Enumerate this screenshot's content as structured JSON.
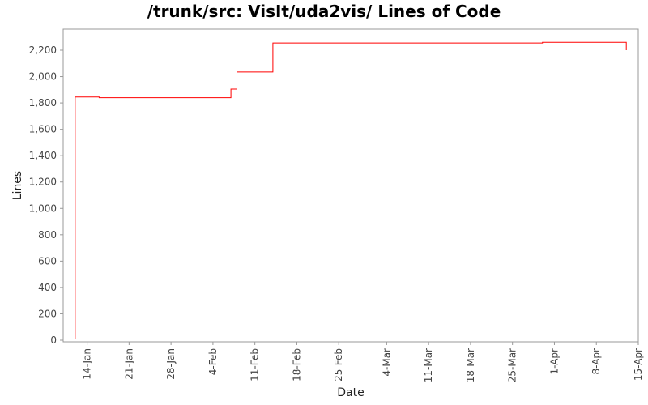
{
  "chart_data": {
    "type": "line",
    "title": "/trunk/src: VisIt/uda2vis/ Lines of Code",
    "xlabel": "Date",
    "ylabel": "Lines",
    "x_type": "date",
    "xlim": [
      "2008-01-10",
      "2008-04-15"
    ],
    "ylim": [
      0,
      2350
    ],
    "grid": false,
    "legend": "none",
    "colors": {
      "line": "#ff0000",
      "plot_border": "#999999",
      "background": "#ffffff"
    },
    "x_ticks": [
      {
        "date": "2008-01-14",
        "label": "14-Jan"
      },
      {
        "date": "2008-01-21",
        "label": "21-Jan"
      },
      {
        "date": "2008-01-28",
        "label": "28-Jan"
      },
      {
        "date": "2008-02-04",
        "label": "4-Feb"
      },
      {
        "date": "2008-02-11",
        "label": "11-Feb"
      },
      {
        "date": "2008-02-18",
        "label": "18-Feb"
      },
      {
        "date": "2008-02-25",
        "label": "25-Feb"
      },
      {
        "date": "2008-03-04",
        "label": "4-Mar"
      },
      {
        "date": "2008-03-11",
        "label": "11-Mar"
      },
      {
        "date": "2008-03-18",
        "label": "18-Mar"
      },
      {
        "date": "2008-03-25",
        "label": "25-Mar"
      },
      {
        "date": "2008-04-01",
        "label": "1-Apr"
      },
      {
        "date": "2008-04-08",
        "label": "8-Apr"
      },
      {
        "date": "2008-04-15",
        "label": "15-Apr"
      }
    ],
    "y_ticks": [
      {
        "value": 0,
        "label": "0"
      },
      {
        "value": 200,
        "label": "200"
      },
      {
        "value": 400,
        "label": "400"
      },
      {
        "value": 600,
        "label": "600"
      },
      {
        "value": 800,
        "label": "800"
      },
      {
        "value": 1000,
        "label": "1,000"
      },
      {
        "value": 1200,
        "label": "1,200"
      },
      {
        "value": 1400,
        "label": "1,400"
      },
      {
        "value": 1600,
        "label": "1,600"
      },
      {
        "value": 1800,
        "label": "1,800"
      },
      {
        "value": 2000,
        "label": "2,000"
      },
      {
        "value": 2200,
        "label": "2,200"
      }
    ],
    "series": [
      {
        "points": [
          {
            "x": "2008-01-12",
            "y": 10
          },
          {
            "x": "2008-01-12",
            "y": 1845
          },
          {
            "x": "2008-01-16",
            "y": 1845
          },
          {
            "x": "2008-01-16",
            "y": 1840
          },
          {
            "x": "2008-02-07",
            "y": 1840
          },
          {
            "x": "2008-02-07",
            "y": 1905
          },
          {
            "x": "2008-02-08",
            "y": 1905
          },
          {
            "x": "2008-02-08",
            "y": 2000
          },
          {
            "x": "2008-02-08",
            "y": 2035
          },
          {
            "x": "2008-02-14",
            "y": 2035
          },
          {
            "x": "2008-02-14",
            "y": 2255
          },
          {
            "x": "2008-03-18",
            "y": 2255
          },
          {
            "x": "2008-03-30",
            "y": 2255
          },
          {
            "x": "2008-03-30",
            "y": 2260
          },
          {
            "x": "2008-04-13",
            "y": 2260
          },
          {
            "x": "2008-04-13",
            "y": 2200
          }
        ]
      }
    ]
  }
}
